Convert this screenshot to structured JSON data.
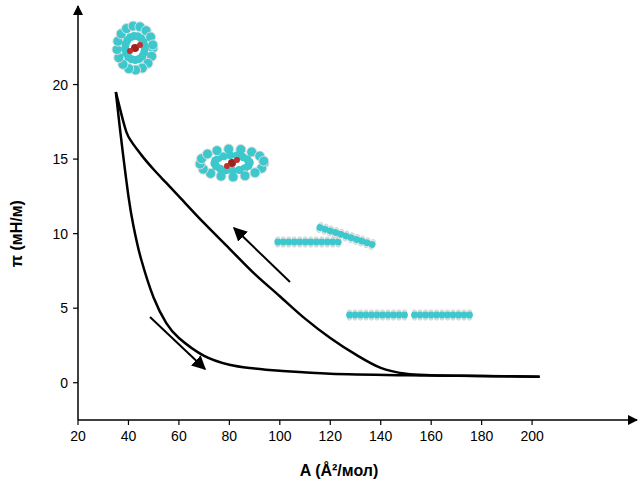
{
  "chart_data": {
    "type": "line",
    "x_label": "A (Å²/мол)",
    "y_label": "π (мН/м)",
    "series": [
      {
        "color": "#000000",
        "line_style": "solid",
        "x": [
          35,
          38,
          40,
          45,
          50,
          55,
          60,
          70,
          80,
          90,
          100,
          110,
          120,
          130,
          140,
          150,
          160,
          180,
          203
        ],
        "values": [
          19.5,
          17.5,
          16.5,
          15.3,
          14.3,
          13.4,
          12.5,
          10.7,
          9.0,
          7.3,
          5.8,
          4.3,
          3.0,
          1.9,
          1.0,
          0.6,
          0.5,
          0.45,
          0.4
        ]
      },
      {
        "color": "#000000",
        "line_style": "solid",
        "x": [
          35,
          37,
          40,
          42,
          45,
          50,
          55,
          60,
          70,
          80,
          90,
          100,
          120,
          150,
          180,
          203
        ],
        "values": [
          19.5,
          16.5,
          12.5,
          10.5,
          8.3,
          5.7,
          4.0,
          3.0,
          1.8,
          1.2,
          0.95,
          0.8,
          0.6,
          0.5,
          0.45,
          0.4
        ]
      }
    ],
    "xlim": [
      20,
      240
    ],
    "ylim": [
      -2.5,
      25
    ],
    "xticks": [
      20,
      40,
      60,
      80,
      100,
      120,
      140,
      160,
      180,
      200
    ],
    "yticks": [
      0,
      5,
      10,
      15,
      20
    ],
    "grid": false
  }
}
